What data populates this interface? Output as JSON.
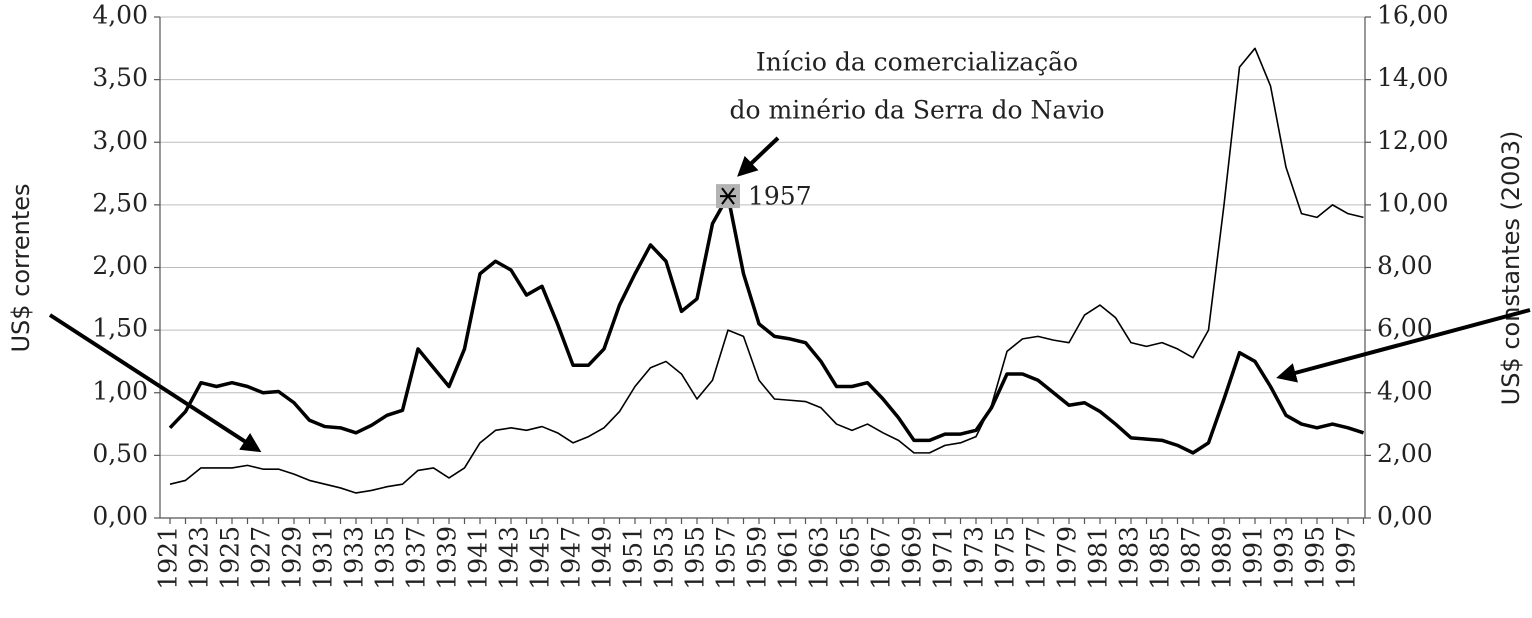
{
  "chart_data": {
    "type": "line",
    "y_label": "US$ correntes",
    "y2_label": "US$ constantes (2003)",
    "annotations": [
      "Início da comercialização",
      "do minério da Serra do Navio",
      "1957"
    ],
    "categories": [
      "1921",
      null,
      "1923",
      null,
      "1925",
      null,
      "1927",
      null,
      "1929",
      null,
      "1931",
      null,
      "1933",
      null,
      "1935",
      null,
      "1937",
      null,
      "1939",
      null,
      "1941",
      null,
      "1943",
      null,
      "1945",
      null,
      "1947",
      null,
      "1949",
      null,
      "1951",
      null,
      "1953",
      null,
      "1955",
      null,
      "1957",
      null,
      "1959",
      null,
      "1961",
      null,
      "1963",
      null,
      "1965",
      null,
      "1967",
      null,
      "1969",
      null,
      "1971",
      null,
      "1973",
      null,
      "1975",
      null,
      "1977",
      null,
      "1979",
      null,
      "1981",
      null,
      "1983",
      null,
      "1985",
      null,
      "1987",
      null,
      "1989",
      null,
      "1991",
      null,
      "1993",
      null,
      "1995",
      null,
      "1997",
      null
    ],
    "series": [
      {
        "color": "#000000",
        "values": [
          0.27,
          0.3,
          0.4,
          0.4,
          0.4,
          0.42,
          0.39,
          0.39,
          0.35,
          0.3,
          0.27,
          0.24,
          0.2,
          0.22,
          0.25,
          0.27,
          0.38,
          0.4,
          0.32,
          0.4,
          0.6,
          0.7,
          0.72,
          0.7,
          0.73,
          0.68,
          0.6,
          0.65,
          0.72,
          0.85,
          1.05,
          1.2,
          1.25,
          1.15,
          0.95,
          1.1,
          1.5,
          1.45,
          1.1,
          0.95,
          0.94,
          0.93,
          0.88,
          0.75,
          0.7,
          0.75,
          0.68,
          0.62,
          0.52,
          0.52,
          0.58,
          0.6,
          0.65,
          0.9,
          1.33,
          1.43,
          1.45,
          1.42,
          1.4,
          1.62,
          1.7,
          1.6,
          1.4,
          1.37,
          1.4,
          1.35,
          1.28,
          1.5,
          2.5,
          3.6,
          3.75,
          3.45,
          2.8,
          2.43,
          2.4,
          2.5,
          2.43,
          2.4
        ]
      },
      {
        "color": "#000000",
        "axis": "y2",
        "values": [
          2.88,
          3.4,
          4.32,
          4.2,
          4.32,
          4.2,
          4.0,
          4.04,
          3.68,
          3.12,
          2.92,
          2.88,
          2.72,
          2.96,
          3.28,
          3.44,
          5.4,
          4.8,
          4.2,
          5.4,
          7.8,
          8.2,
          7.92,
          7.12,
          7.4,
          6.2,
          4.88,
          4.88,
          5.4,
          6.8,
          7.8,
          8.72,
          8.2,
          6.6,
          7.0,
          9.4,
          10.28,
          7.8,
          6.2,
          5.8,
          5.72,
          5.6,
          5.0,
          4.2,
          4.2,
          4.32,
          3.8,
          3.2,
          2.48,
          2.48,
          2.68,
          2.68,
          2.8,
          3.52,
          4.6,
          4.6,
          4.4,
          4.0,
          3.6,
          3.68,
          3.4,
          3.0,
          2.56,
          2.52,
          2.48,
          2.32,
          2.08,
          2.4,
          3.8,
          5.28,
          5.0,
          4.2,
          3.28,
          3.0,
          2.88,
          3.0,
          2.88,
          2.72
        ]
      }
    ],
    "ylim": [
      0,
      4
    ],
    "yticks": [
      {
        "value": 0,
        "label": "0,00"
      },
      {
        "value": 0.5,
        "label": "0,50"
      },
      {
        "value": 1,
        "label": "1,00"
      },
      {
        "value": 1.5,
        "label": "1,50"
      },
      {
        "value": 2,
        "label": "2,00"
      },
      {
        "value": 2.5,
        "label": "2,50"
      },
      {
        "value": 3,
        "label": "3,00"
      },
      {
        "value": 3.5,
        "label": "3,50"
      },
      {
        "value": 4,
        "label": "4,00"
      }
    ],
    "y2lim": [
      0,
      16
    ],
    "y2ticks": [
      {
        "value": 0,
        "label": "0,00"
      },
      {
        "value": 2,
        "label": "2,00"
      },
      {
        "value": 4,
        "label": "4,00"
      },
      {
        "value": 6,
        "label": "6,00"
      },
      {
        "value": 8,
        "label": "8,00"
      },
      {
        "value": 10,
        "label": "10,00"
      },
      {
        "value": 12,
        "label": "12,00"
      },
      {
        "value": 14,
        "label": "14,00"
      },
      {
        "value": 16,
        "label": "16,00"
      }
    ],
    "grid": true
  }
}
